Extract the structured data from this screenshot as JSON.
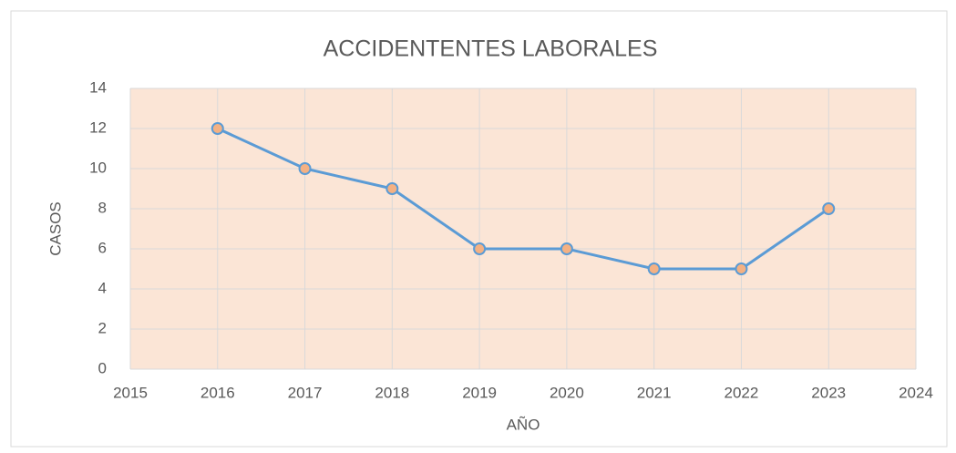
{
  "chart_data": {
    "type": "line",
    "title": "ACCIDENTENTES LABORALES",
    "x_label": "AÑO",
    "y_label": "CASOS",
    "x": [
      2016,
      2017,
      2018,
      2019,
      2020,
      2021,
      2022,
      2023
    ],
    "series": [
      {
        "name": "CASOS",
        "color": "#5b9bd5",
        "marker_color": "#f4b183",
        "values": [
          12,
          10,
          9,
          6,
          6,
          5,
          5,
          8
        ]
      }
    ],
    "xlim": [
      2015,
      2024
    ],
    "xticks": [
      2015,
      2016,
      2017,
      2018,
      2019,
      2020,
      2021,
      2022,
      2023,
      2024
    ],
    "ylim": [
      0,
      14
    ],
    "yticks": [
      0,
      2,
      4,
      6,
      8,
      10,
      12,
      14
    ],
    "grid": true,
    "plot_background": "#fbe5d6",
    "legend": false
  }
}
